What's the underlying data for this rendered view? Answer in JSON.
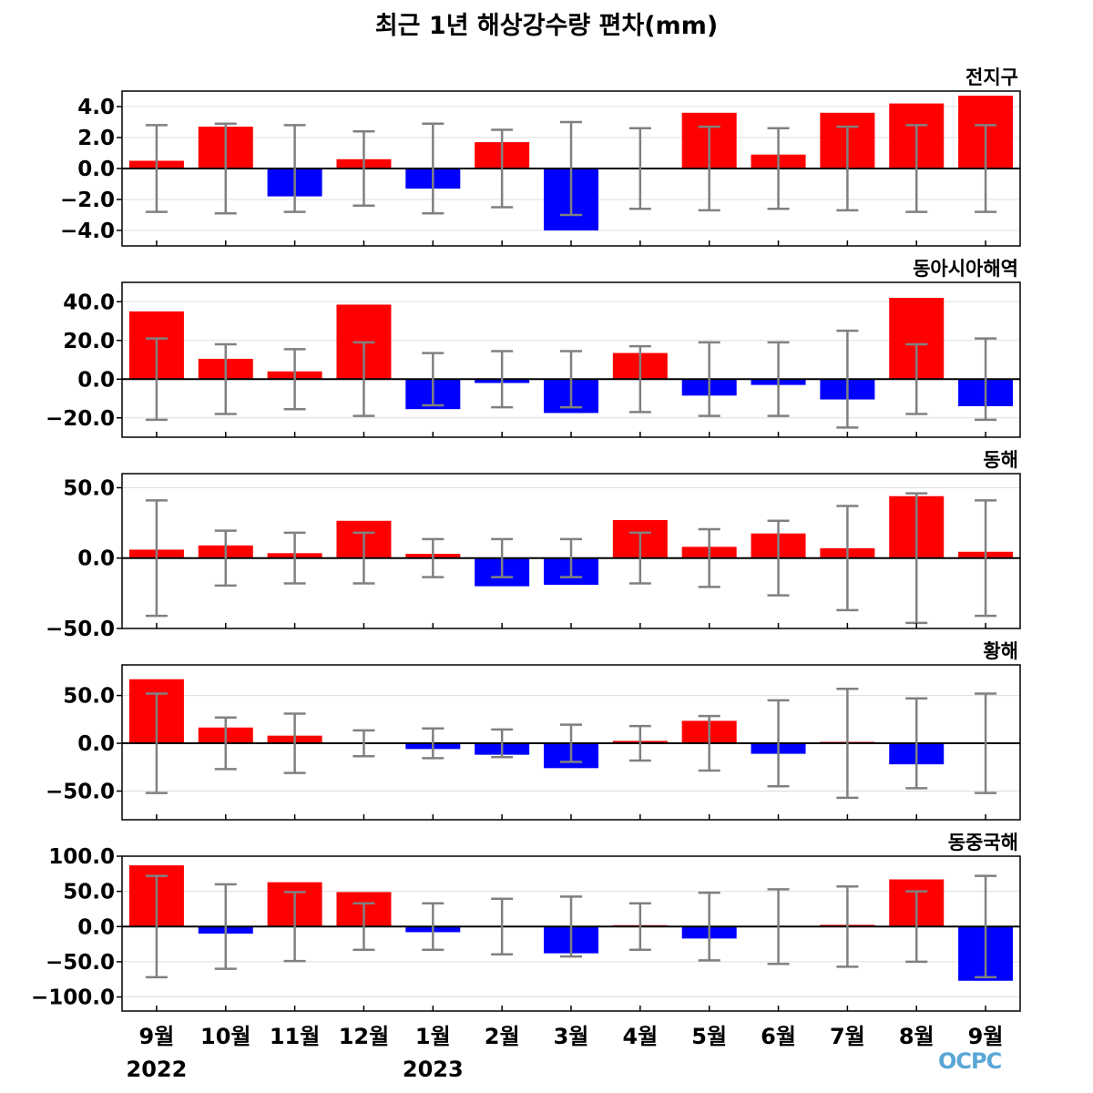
{
  "title": "최근 1년 해상강수량 편차(mm)",
  "logo_text": "OCPC",
  "colors": {
    "positive": "#ff0000",
    "negative": "#0000ff",
    "errorbar": "#808080",
    "zero_line": "#000000",
    "grid": "#dddddd"
  },
  "chart_data": {
    "type": "bar",
    "categories": [
      "9월",
      "10월",
      "11월",
      "12월",
      "1월",
      "2월",
      "3월",
      "4월",
      "5월",
      "6월",
      "7월",
      "8월",
      "9월"
    ],
    "year_labels": [
      {
        "index": 0,
        "label": "2022"
      },
      {
        "index": 4,
        "label": "2023"
      }
    ],
    "panels": [
      {
        "name": "전지구",
        "ylim": [
          -5.0,
          5.0
        ],
        "yticks": [
          "4.0",
          "2.0",
          "0.0",
          "−2.0",
          "−4.0"
        ],
        "ytick_values": [
          4,
          2,
          0,
          -2,
          -4
        ],
        "values": [
          0.5,
          2.7,
          -1.8,
          0.6,
          -1.3,
          1.7,
          -4.0,
          0.0,
          3.6,
          0.9,
          3.6,
          4.2,
          4.7
        ],
        "errors": [
          2.8,
          2.9,
          2.8,
          2.4,
          2.9,
          2.5,
          3.0,
          2.6,
          2.7,
          2.6,
          2.7,
          2.8,
          2.8
        ]
      },
      {
        "name": "동아시아해역",
        "ylim": [
          -30.0,
          50.0
        ],
        "yticks": [
          "40.0",
          "20.0",
          "0.0",
          "−20.0"
        ],
        "ytick_values": [
          40,
          20,
          0,
          -20
        ],
        "values": [
          35.0,
          10.5,
          4.0,
          38.5,
          -15.5,
          -2.0,
          -17.5,
          13.5,
          -8.5,
          -3.0,
          -10.5,
          42.0,
          -14.0
        ],
        "errors": [
          21.0,
          18.0,
          15.5,
          19.0,
          13.5,
          14.5,
          14.5,
          17.0,
          19.0,
          19.0,
          25.0,
          18.0,
          21.0
        ]
      },
      {
        "name": "동해",
        "ylim": [
          -50.0,
          60.0
        ],
        "yticks": [
          "50.0",
          "0.0",
          "−50.0"
        ],
        "ytick_values": [
          50,
          0,
          -50
        ],
        "values": [
          6.0,
          9.0,
          3.5,
          26.5,
          3.0,
          -20.0,
          -19.0,
          27.0,
          8.0,
          17.5,
          7.0,
          44.0,
          4.5
        ],
        "errors": [
          41.0,
          19.5,
          18.0,
          18.0,
          13.5,
          13.5,
          13.5,
          18.0,
          20.5,
          26.5,
          37.0,
          46.0,
          41.0
        ]
      },
      {
        "name": "황해",
        "ylim": [
          -80.0,
          82.0
        ],
        "yticks": [
          "50.0",
          "0.0",
          "−50.0"
        ],
        "ytick_values": [
          50,
          0,
          -50
        ],
        "values": [
          67.0,
          16.5,
          8.0,
          1.0,
          -6.0,
          -12.0,
          -26.0,
          2.5,
          23.5,
          -11.0,
          1.5,
          -22.0,
          1.0
        ],
        "errors": [
          52.0,
          27.0,
          31.0,
          13.5,
          15.5,
          14.5,
          19.5,
          18.0,
          28.5,
          45.0,
          57.0,
          47.0,
          52.0
        ]
      },
      {
        "name": "동중국해",
        "ylim": [
          -120.0,
          100.0
        ],
        "yticks": [
          "100.0",
          "50.0",
          "0.0",
          "−50.0",
          "−100.0"
        ],
        "ytick_values": [
          100,
          50,
          0,
          -50,
          -100
        ],
        "values": [
          87.0,
          -10.0,
          63.0,
          49.0,
          -8.0,
          -1.0,
          -38.0,
          2.0,
          -17.0,
          -1.0,
          2.5,
          67.0,
          -77.0
        ],
        "errors": [
          72.0,
          60.0,
          49.0,
          33.0,
          33.0,
          39.5,
          42.5,
          33.0,
          48.0,
          53.0,
          57.0,
          50.0,
          72.0
        ]
      }
    ]
  }
}
